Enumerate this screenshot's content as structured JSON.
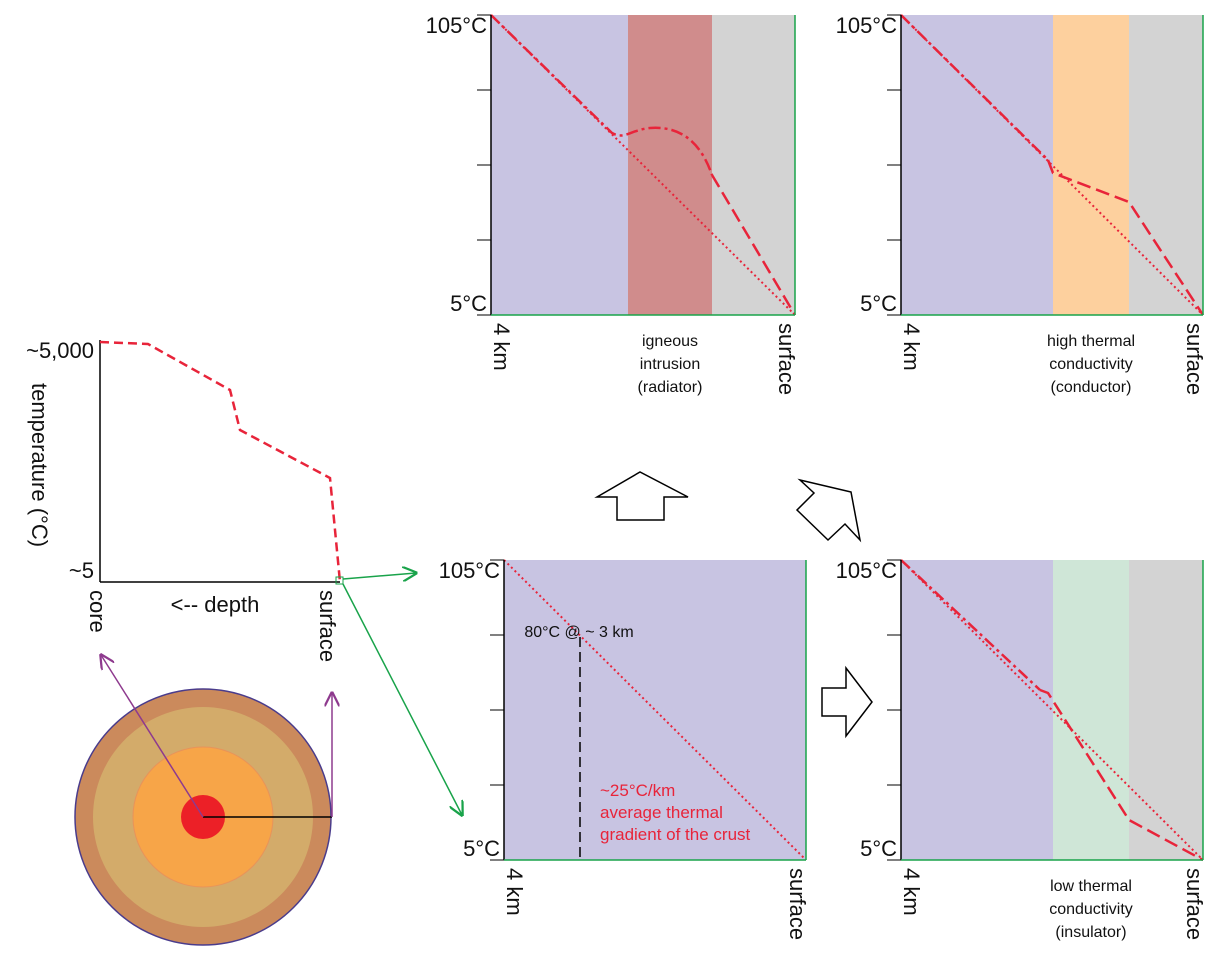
{
  "left_chart": {
    "y_top": "~5,000",
    "y_bottom": "~5",
    "y_label": "temperature (°C)",
    "x_left": "core",
    "x_label": "<-- depth",
    "x_right": "surface"
  },
  "panels": [
    {
      "y_top": "105°C",
      "y_bottom": "5°C",
      "x_left": "4 km",
      "x_right": "surface",
      "caption": [
        "igneous",
        "intrusion",
        "(radiator)"
      ]
    },
    {
      "y_top": "105°C",
      "y_bottom": "5°C",
      "x_left": "4 km",
      "x_right": "surface",
      "caption": [
        "high thermal",
        "conductivity",
        "(conductor)"
      ]
    },
    {
      "y_top": "105°C",
      "y_bottom": "5°C",
      "x_left": "4 km",
      "x_right": "surface",
      "annotation": "80°C @ ~ 3 km",
      "note": [
        "~25°C/km",
        "average thermal",
        "gradient of the crust"
      ]
    },
    {
      "y_top": "105°C",
      "y_bottom": "5°C",
      "x_left": "4 km",
      "x_right": "surface",
      "caption": [
        "low thermal",
        "conductivity",
        "(insulator)"
      ]
    }
  ]
}
